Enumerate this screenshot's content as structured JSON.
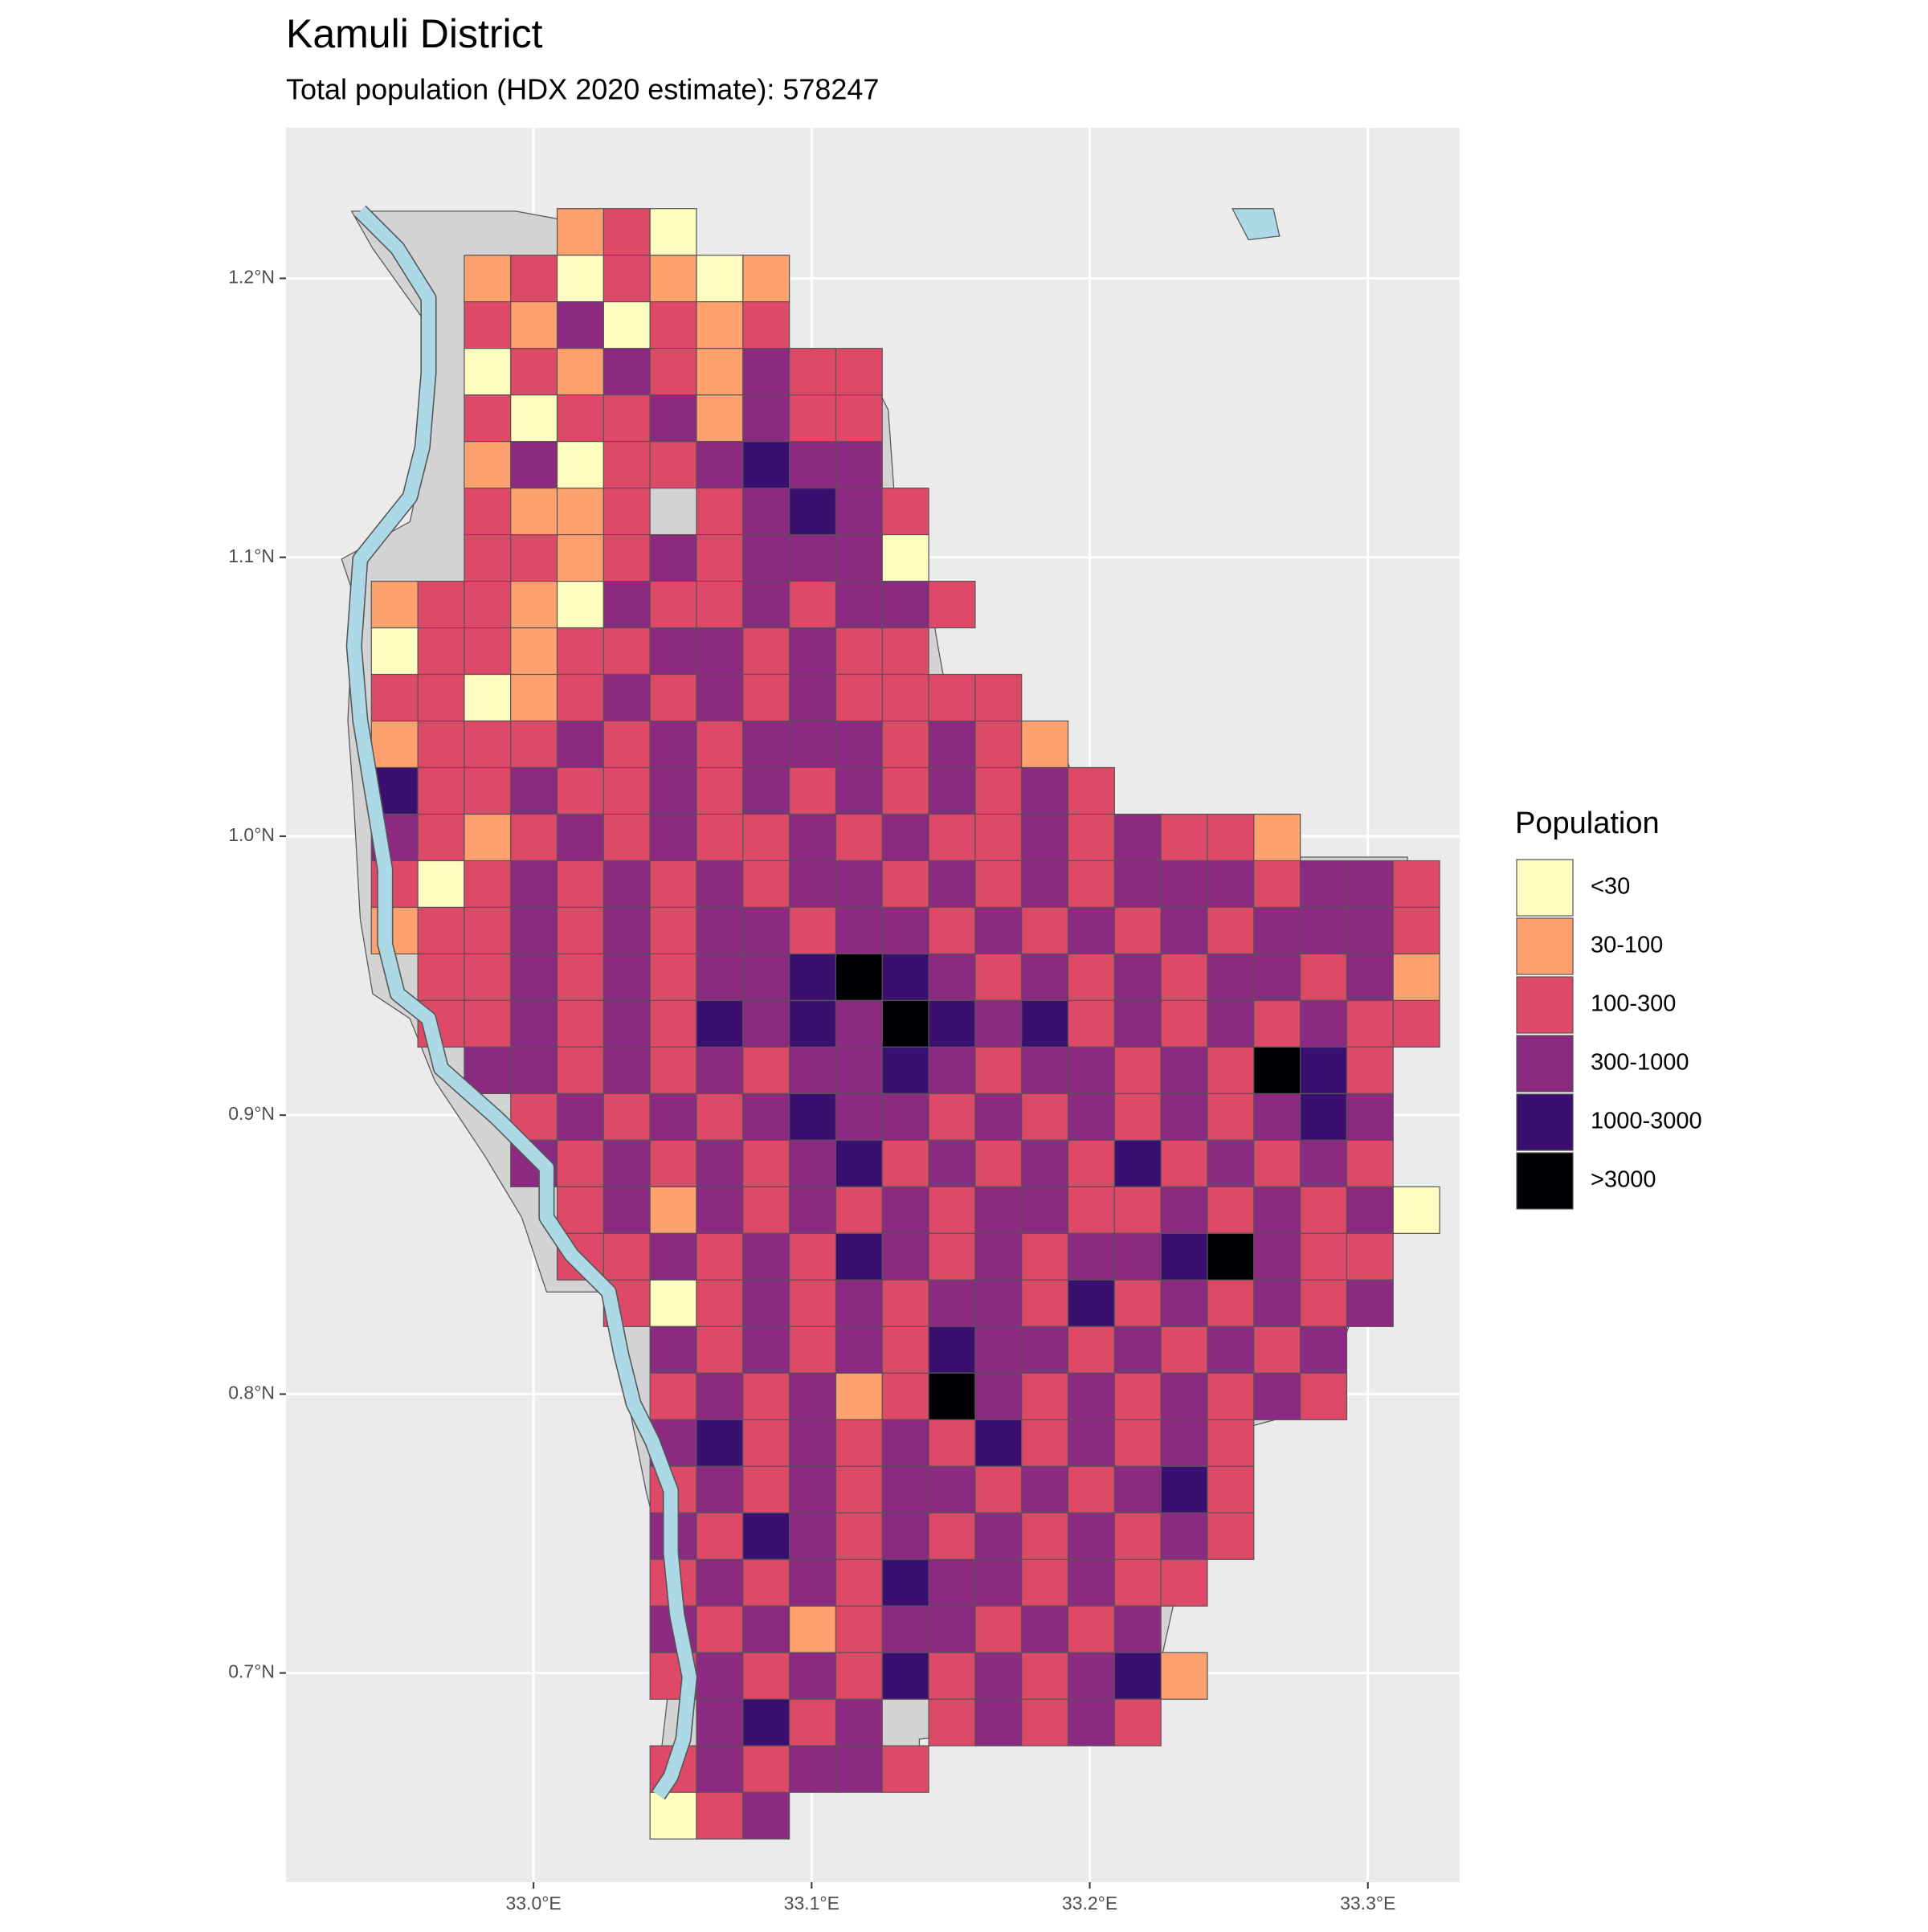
{
  "chart_data": {
    "type": "gridmap",
    "title": "Kamuli District",
    "subtitle": "Total population (HDX 2020 estimate): 578247",
    "legend_title": "Population",
    "legend": {
      "labels": [
        "<30",
        "30-100",
        "100-300",
        "300-1000",
        "1000-3000",
        ">3000"
      ],
      "colors": [
        "#fcfdbf",
        "#fea16e",
        "#de4968",
        "#8c2981",
        "#3b0f70",
        "#000004"
      ]
    },
    "xlim": [
      32.911,
      33.333
    ],
    "ylim": [
      0.625,
      1.254
    ],
    "xticks": [
      {
        "value": 33.0,
        "label": "33.0°E"
      },
      {
        "value": 33.1,
        "label": "33.1°E"
      },
      {
        "value": 33.2,
        "label": "33.2°E"
      },
      {
        "value": 33.3,
        "label": "33.3°E"
      }
    ],
    "yticks": [
      {
        "value": 0.7,
        "label": "0.7°N"
      },
      {
        "value": 0.8,
        "label": "0.8°N"
      },
      {
        "value": 0.9,
        "label": "0.9°N"
      },
      {
        "value": 1.0,
        "label": "1.0°N"
      },
      {
        "value": 1.1,
        "label": "1.1°N"
      },
      {
        "value": 1.2,
        "label": "1.2°N"
      }
    ],
    "grid": true,
    "cells": {
      "lon0": 32.925,
      "lat0": 1.225,
      "size": 0.0167,
      "rows": [
        ".....120................",
        "...1202101..............",
        "...2130212..............",
        "...021321322............",
        "...202231322............",
        "...130223433............",
        "...2112.23432...........",
        "...2212323330...........",
        ".1221032232332..........",
        ".022122332322...........",
        ".22012323232222.........",
        ".122232323332321........",
        ".4223223232323232.......",
        ".32123232232322323221...",
        ".20232323233232323332332",
        ".12232323323323232323332",
        "..2232323345432323233231",
        "..2232324343543423232322",
        "...33232323343233232542.",
        "....2323234332323232343.",
        "....3232323423232423232.",
        ".....2313232323322323230",
        ".....223232432323345322.",
        "......20232323324232323.",
        ".......323232433232323..",
        ".......232312532323232..",
        ".......3423232423232....",
        ".......2323233232342....",
        ".......3243232323232....",
        ".......232324332322.....",
        ".......32312332323......",
        ".......232324232341.....",
        "........3423.23232......",
        ".......232332...........",
        ".......023.............."
      ]
    }
  }
}
